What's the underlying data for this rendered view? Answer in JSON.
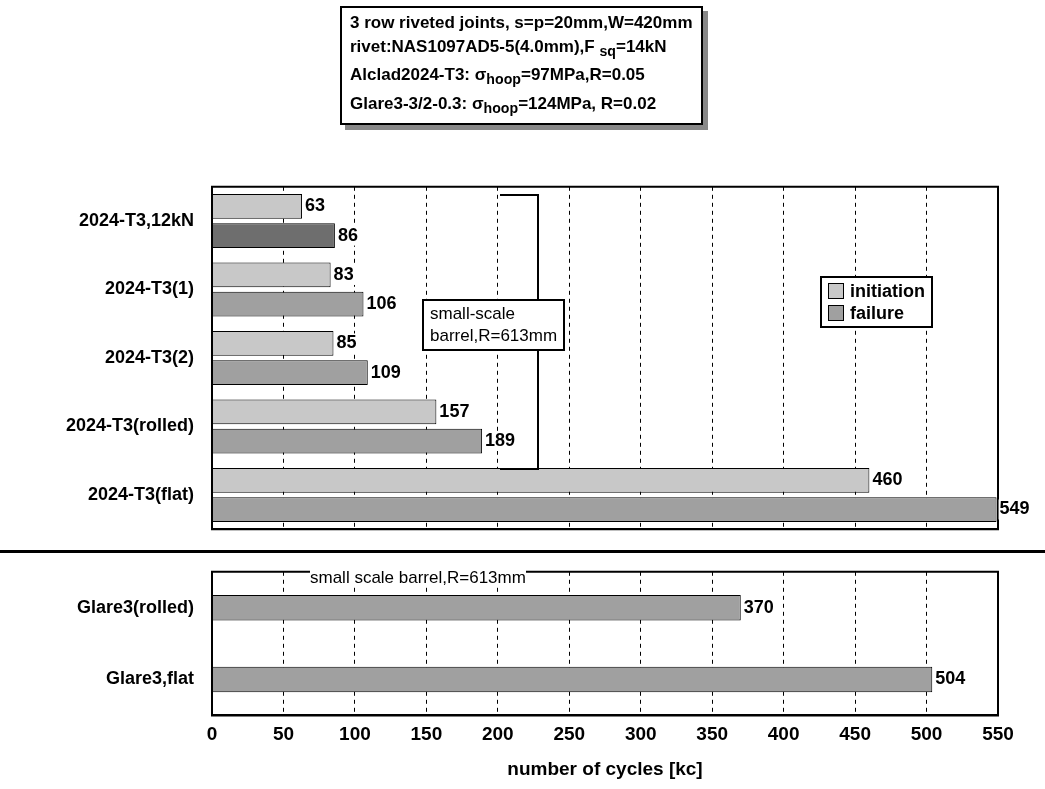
{
  "chart_data": [
    {
      "type": "bar",
      "orientation": "horizontal",
      "title": "3 row riveted joints, s=p=20mm,W=420mm\nrivet:NAS1097AD5-5(4.0mm),F $_{sq}$=14kN\nAlclad2024-T3: σ$_{hoop}$=97MPa,R=0.05\nGlare3-3/2-0.3: σ$_{hoop}$=124MPa, R=0.02",
      "categories": [
        "2024-T3,12kN",
        "2024-T3(1)",
        "2024-T3(2)",
        "2024-T3(rolled)",
        "2024-T3(flat)"
      ],
      "series": [
        {
          "name": "initiation",
          "color": "#c8c8c8",
          "values": [
            63,
            83,
            85,
            157,
            460
          ]
        },
        {
          "name": "failure",
          "color": "#a0a0a0",
          "colors": [
            "#6e6e6e",
            "#a0a0a0",
            "#a0a0a0",
            "#a0a0a0",
            "#a0a0a0"
          ],
          "values": [
            86,
            106,
            109,
            189,
            549
          ]
        }
      ],
      "xlim": [
        0,
        550
      ],
      "xticks": [
        0,
        50,
        100,
        150,
        200,
        250,
        300,
        350,
        400,
        450,
        500,
        550
      ],
      "tick_labels": "y",
      "grid": "x",
      "legend": "right",
      "data_labels": true,
      "annotations": [
        "small-scale\nbarrel,R=613mm"
      ]
    },
    {
      "type": "bar",
      "orientation": "horizontal",
      "xlabel": "number of cycles [kc]",
      "categories": [
        "Glare3(rolled)",
        "Glare3,flat"
      ],
      "series": [
        {
          "color": "#a0a0a0",
          "values": [
            370,
            504
          ]
        }
      ],
      "xlim": [
        0,
        550
      ],
      "xticks": [
        0,
        50,
        100,
        150,
        200,
        250,
        300,
        350,
        400,
        450,
        500,
        550
      ],
      "grid": "x",
      "data_labels": true,
      "annotations": [
        "small scale barrel,R=613mm"
      ]
    }
  ]
}
